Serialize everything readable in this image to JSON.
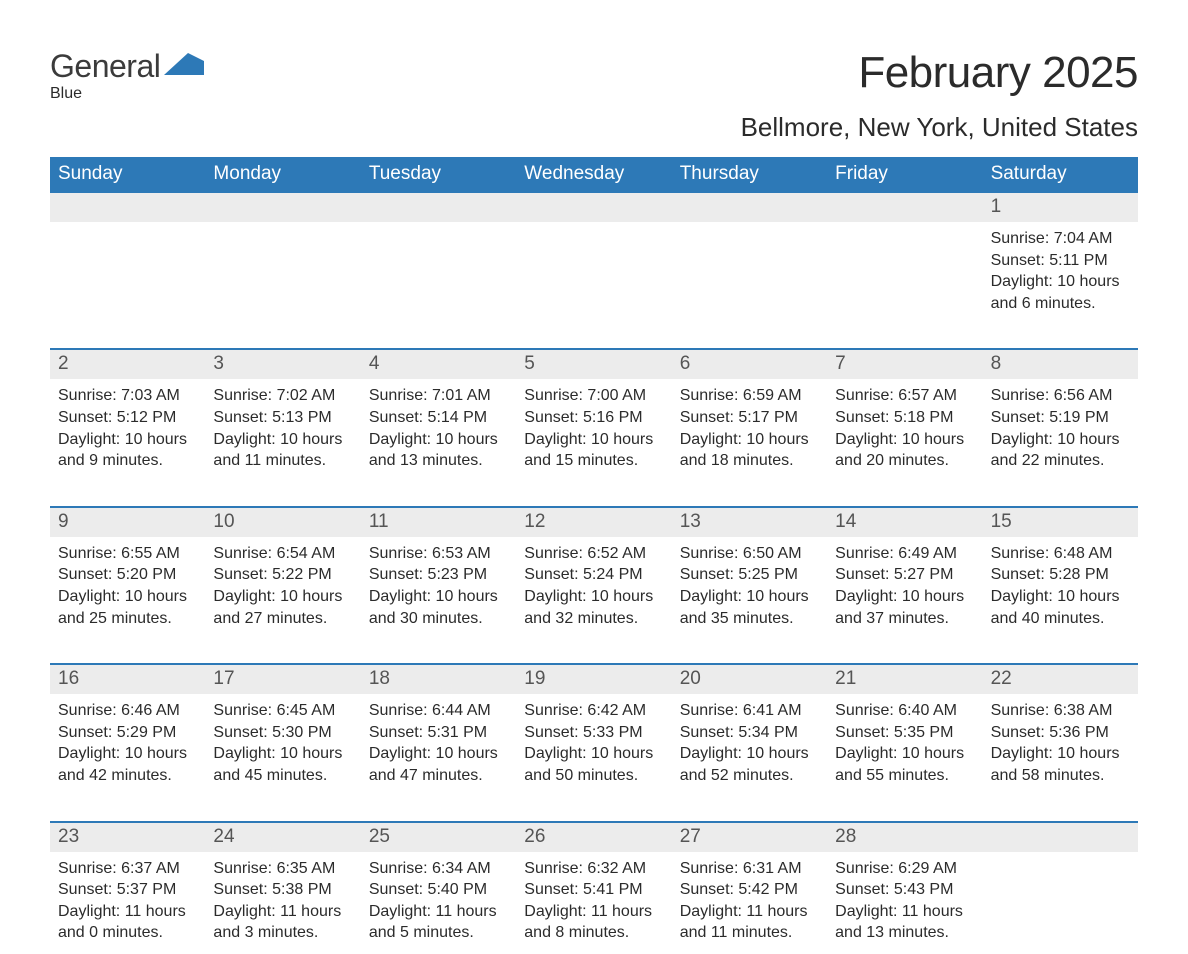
{
  "logo": {
    "text_general": "General",
    "text_blue": "Blue",
    "flag_color": "#2d79b7"
  },
  "header": {
    "month_title": "February 2025",
    "location": "Bellmore, New York, United States"
  },
  "colors": {
    "header_bg": "#2d79b7",
    "header_text": "#ffffff",
    "week_rule": "#2d79b7",
    "daynum_bg": "#ececec",
    "daynum_text": "#555555",
    "body_text": "#2b2b2b",
    "page_bg": "#ffffff"
  },
  "typography": {
    "month_title_pt": 44,
    "location_pt": 26,
    "weekday_pt": 19,
    "daynum_pt": 19,
    "body_pt": 16,
    "font_family": "Segoe UI"
  },
  "weekdays": [
    "Sunday",
    "Monday",
    "Tuesday",
    "Wednesday",
    "Thursday",
    "Friday",
    "Saturday"
  ],
  "weeks": [
    [
      null,
      null,
      null,
      null,
      null,
      null,
      {
        "n": "1",
        "sunrise": "Sunrise: 7:04 AM",
        "sunset": "Sunset: 5:11 PM",
        "daylight": "Daylight: 10 hours and 6 minutes."
      }
    ],
    [
      {
        "n": "2",
        "sunrise": "Sunrise: 7:03 AM",
        "sunset": "Sunset: 5:12 PM",
        "daylight": "Daylight: 10 hours and 9 minutes."
      },
      {
        "n": "3",
        "sunrise": "Sunrise: 7:02 AM",
        "sunset": "Sunset: 5:13 PM",
        "daylight": "Daylight: 10 hours and 11 minutes."
      },
      {
        "n": "4",
        "sunrise": "Sunrise: 7:01 AM",
        "sunset": "Sunset: 5:14 PM",
        "daylight": "Daylight: 10 hours and 13 minutes."
      },
      {
        "n": "5",
        "sunrise": "Sunrise: 7:00 AM",
        "sunset": "Sunset: 5:16 PM",
        "daylight": "Daylight: 10 hours and 15 minutes."
      },
      {
        "n": "6",
        "sunrise": "Sunrise: 6:59 AM",
        "sunset": "Sunset: 5:17 PM",
        "daylight": "Daylight: 10 hours and 18 minutes."
      },
      {
        "n": "7",
        "sunrise": "Sunrise: 6:57 AM",
        "sunset": "Sunset: 5:18 PM",
        "daylight": "Daylight: 10 hours and 20 minutes."
      },
      {
        "n": "8",
        "sunrise": "Sunrise: 6:56 AM",
        "sunset": "Sunset: 5:19 PM",
        "daylight": "Daylight: 10 hours and 22 minutes."
      }
    ],
    [
      {
        "n": "9",
        "sunrise": "Sunrise: 6:55 AM",
        "sunset": "Sunset: 5:20 PM",
        "daylight": "Daylight: 10 hours and 25 minutes."
      },
      {
        "n": "10",
        "sunrise": "Sunrise: 6:54 AM",
        "sunset": "Sunset: 5:22 PM",
        "daylight": "Daylight: 10 hours and 27 minutes."
      },
      {
        "n": "11",
        "sunrise": "Sunrise: 6:53 AM",
        "sunset": "Sunset: 5:23 PM",
        "daylight": "Daylight: 10 hours and 30 minutes."
      },
      {
        "n": "12",
        "sunrise": "Sunrise: 6:52 AM",
        "sunset": "Sunset: 5:24 PM",
        "daylight": "Daylight: 10 hours and 32 minutes."
      },
      {
        "n": "13",
        "sunrise": "Sunrise: 6:50 AM",
        "sunset": "Sunset: 5:25 PM",
        "daylight": "Daylight: 10 hours and 35 minutes."
      },
      {
        "n": "14",
        "sunrise": "Sunrise: 6:49 AM",
        "sunset": "Sunset: 5:27 PM",
        "daylight": "Daylight: 10 hours and 37 minutes."
      },
      {
        "n": "15",
        "sunrise": "Sunrise: 6:48 AM",
        "sunset": "Sunset: 5:28 PM",
        "daylight": "Daylight: 10 hours and 40 minutes."
      }
    ],
    [
      {
        "n": "16",
        "sunrise": "Sunrise: 6:46 AM",
        "sunset": "Sunset: 5:29 PM",
        "daylight": "Daylight: 10 hours and 42 minutes."
      },
      {
        "n": "17",
        "sunrise": "Sunrise: 6:45 AM",
        "sunset": "Sunset: 5:30 PM",
        "daylight": "Daylight: 10 hours and 45 minutes."
      },
      {
        "n": "18",
        "sunrise": "Sunrise: 6:44 AM",
        "sunset": "Sunset: 5:31 PM",
        "daylight": "Daylight: 10 hours and 47 minutes."
      },
      {
        "n": "19",
        "sunrise": "Sunrise: 6:42 AM",
        "sunset": "Sunset: 5:33 PM",
        "daylight": "Daylight: 10 hours and 50 minutes."
      },
      {
        "n": "20",
        "sunrise": "Sunrise: 6:41 AM",
        "sunset": "Sunset: 5:34 PM",
        "daylight": "Daylight: 10 hours and 52 minutes."
      },
      {
        "n": "21",
        "sunrise": "Sunrise: 6:40 AM",
        "sunset": "Sunset: 5:35 PM",
        "daylight": "Daylight: 10 hours and 55 minutes."
      },
      {
        "n": "22",
        "sunrise": "Sunrise: 6:38 AM",
        "sunset": "Sunset: 5:36 PM",
        "daylight": "Daylight: 10 hours and 58 minutes."
      }
    ],
    [
      {
        "n": "23",
        "sunrise": "Sunrise: 6:37 AM",
        "sunset": "Sunset: 5:37 PM",
        "daylight": "Daylight: 11 hours and 0 minutes."
      },
      {
        "n": "24",
        "sunrise": "Sunrise: 6:35 AM",
        "sunset": "Sunset: 5:38 PM",
        "daylight": "Daylight: 11 hours and 3 minutes."
      },
      {
        "n": "25",
        "sunrise": "Sunrise: 6:34 AM",
        "sunset": "Sunset: 5:40 PM",
        "daylight": "Daylight: 11 hours and 5 minutes."
      },
      {
        "n": "26",
        "sunrise": "Sunrise: 6:32 AM",
        "sunset": "Sunset: 5:41 PM",
        "daylight": "Daylight: 11 hours and 8 minutes."
      },
      {
        "n": "27",
        "sunrise": "Sunrise: 6:31 AM",
        "sunset": "Sunset: 5:42 PM",
        "daylight": "Daylight: 11 hours and 11 minutes."
      },
      {
        "n": "28",
        "sunrise": "Sunrise: 6:29 AM",
        "sunset": "Sunset: 5:43 PM",
        "daylight": "Daylight: 11 hours and 13 minutes."
      },
      null
    ]
  ]
}
